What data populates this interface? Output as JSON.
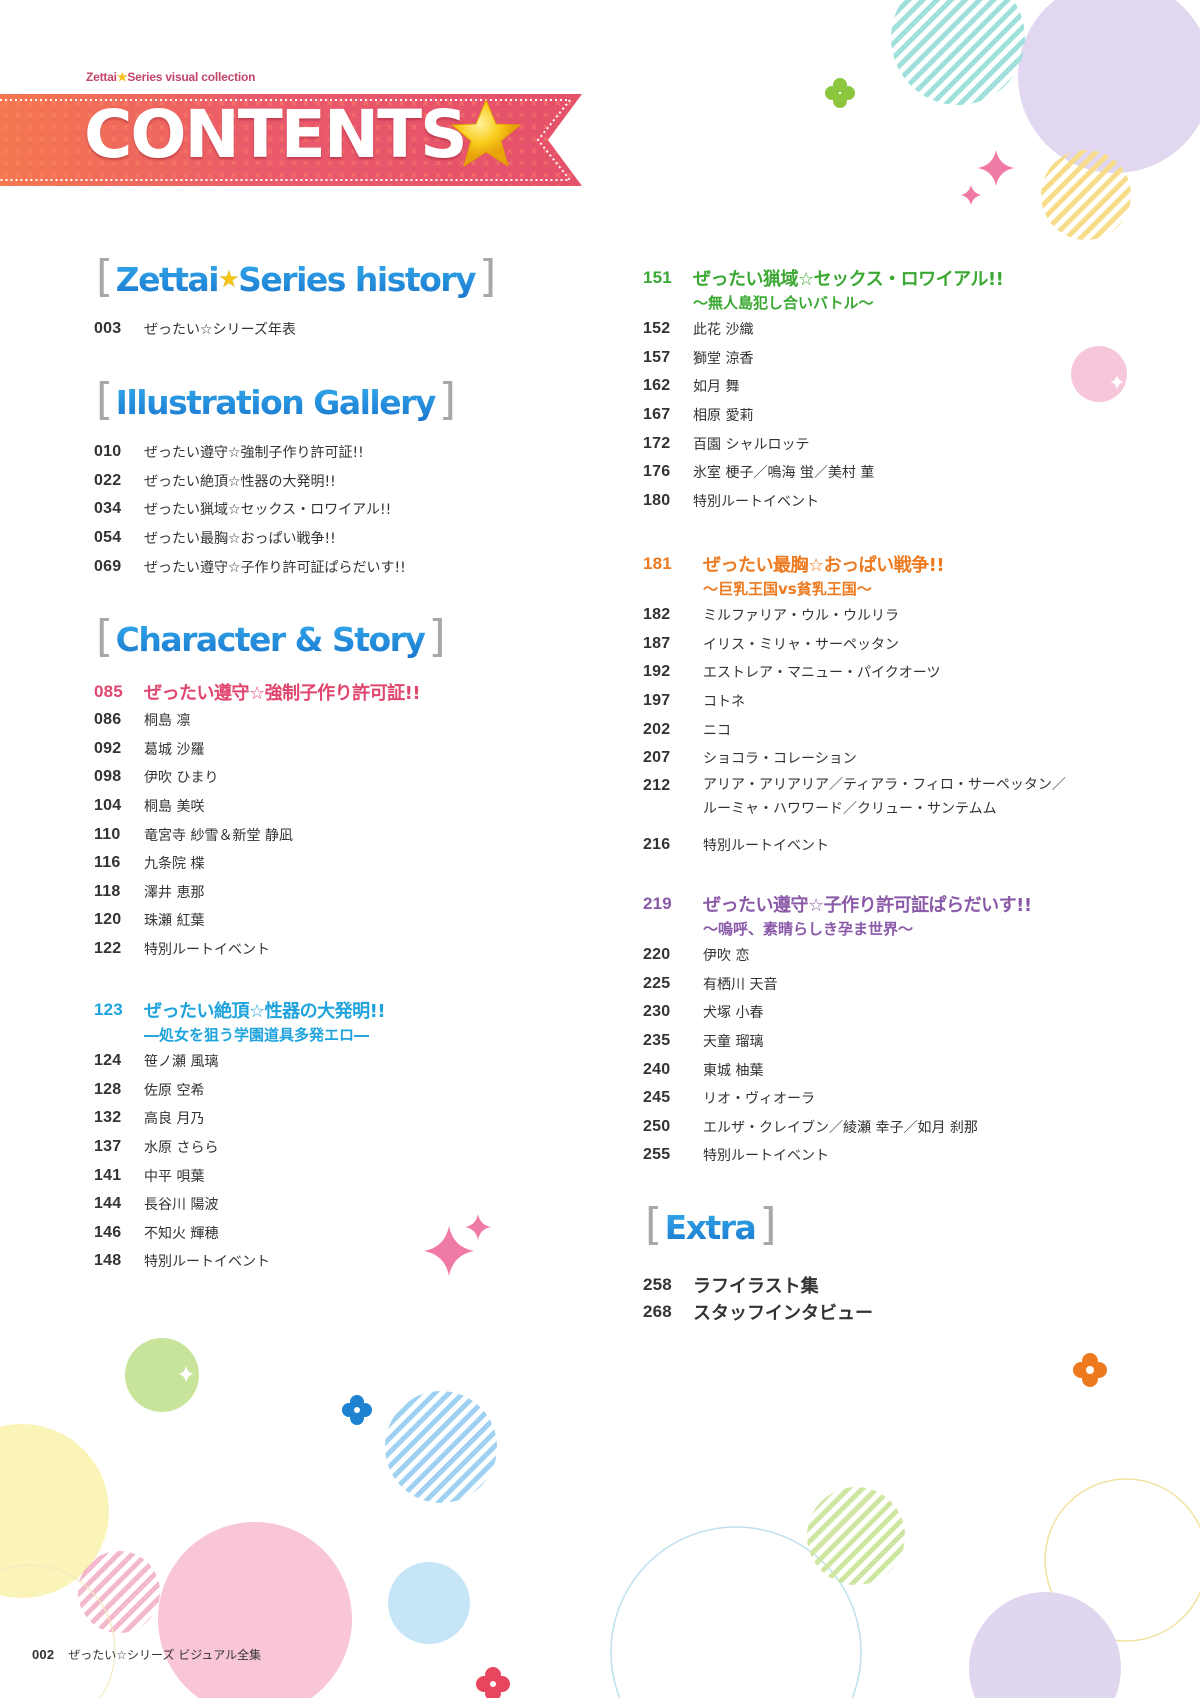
{
  "header": {
    "series_label_left": "Zettai",
    "series_label_right": "Series visual collection",
    "title": "CONTENTS"
  },
  "colors": {
    "pink": "#e0466e",
    "blue": "#1f8ad6",
    "green": "#3aa832",
    "orange": "#ee7a1f",
    "purple": "#8a5aa8",
    "banner": "#e8566e"
  },
  "sections": {
    "history": {
      "heading_left": "Zettai",
      "heading_right": "Series history",
      "items": [
        {
          "page": "003",
          "title": "ぜったい☆シリーズ年表"
        }
      ]
    },
    "gallery": {
      "heading": "Illustration Gallery",
      "items": [
        {
          "page": "010",
          "title": "ぜったい遵守☆強制子作り許可証!!"
        },
        {
          "page": "022",
          "title": "ぜったい絶頂☆性器の大発明!!"
        },
        {
          "page": "034",
          "title": "ぜったい猟域☆セックス・ロワイアル!!"
        },
        {
          "page": "054",
          "title": "ぜったい最胸☆おっぱい戦争!!"
        },
        {
          "page": "069",
          "title": "ぜったい遵守☆子作り許可証ぱらだいす!!"
        }
      ]
    },
    "character": {
      "heading": "Character & Story"
    },
    "extra": {
      "heading": "Extra",
      "items": [
        {
          "page": "258",
          "title": "ラフイラスト集"
        },
        {
          "page": "268",
          "title": "スタッフインタビュー"
        }
      ]
    }
  },
  "groups": [
    {
      "page": "085",
      "title": "ぜったい遵守☆強制子作り許可証!!",
      "subtitle": "",
      "color": "#e0466e",
      "items": [
        {
          "page": "086",
          "title": "桐島 凛"
        },
        {
          "page": "092",
          "title": "葛城 沙羅"
        },
        {
          "page": "098",
          "title": "伊吹 ひまり"
        },
        {
          "page": "104",
          "title": "桐島 美咲"
        },
        {
          "page": "110",
          "title": "竜宮寺 紗雪＆新堂 静凪"
        },
        {
          "page": "116",
          "title": "九条院 楪"
        },
        {
          "page": "118",
          "title": "澤井 恵那"
        },
        {
          "page": "120",
          "title": "珠瀬 紅葉"
        },
        {
          "page": "122",
          "title": "特別ルートイベント"
        }
      ]
    },
    {
      "page": "123",
      "title": "ぜったい絶頂☆性器の大発明!!",
      "subtitle": "―処女を狙う学園道具多発エロ―",
      "color": "#1ea3dc",
      "items": [
        {
          "page": "124",
          "title": "笹ノ瀬 風璃"
        },
        {
          "page": "128",
          "title": "佐原 空希"
        },
        {
          "page": "132",
          "title": "高良 月乃"
        },
        {
          "page": "137",
          "title": "水原 さらら"
        },
        {
          "page": "141",
          "title": "中平 唄葉"
        },
        {
          "page": "144",
          "title": "長谷川 陽波"
        },
        {
          "page": "146",
          "title": "不知火 輝穂"
        },
        {
          "page": "148",
          "title": "特別ルートイベント"
        }
      ]
    },
    {
      "page": "151",
      "title": "ぜったい猟域☆セックス・ロワイアル!!",
      "subtitle": "～無人島犯し合いバトル～",
      "color": "#3aa832",
      "items": [
        {
          "page": "152",
          "title": "此花 沙織"
        },
        {
          "page": "157",
          "title": "獅堂 涼香"
        },
        {
          "page": "162",
          "title": "如月 舞"
        },
        {
          "page": "167",
          "title": "相原 愛莉"
        },
        {
          "page": "172",
          "title": "百園 シャルロッテ"
        },
        {
          "page": "176",
          "title": "氷室 梗子／鳴海 蛍／美村 菫"
        },
        {
          "page": "180",
          "title": "特別ルートイベント"
        }
      ]
    },
    {
      "page": "181",
      "title": "ぜったい最胸☆おっぱい戦争!!",
      "subtitle": "～巨乳王国vs貧乳王国～",
      "color": "#ee7a1f",
      "items": [
        {
          "page": "182",
          "title": "ミルファリア・ウル・ウルリラ"
        },
        {
          "page": "187",
          "title": "イリス・ミリャ・サーペッタン"
        },
        {
          "page": "192",
          "title": "エストレア・マニュー・パイクオーツ"
        },
        {
          "page": "197",
          "title": "コトネ"
        },
        {
          "page": "202",
          "title": "ニコ"
        },
        {
          "page": "207",
          "title": "ショコラ・コレーション"
        },
        {
          "page": "212",
          "title": "アリア・アリアリア／ティアラ・フィロ・サーペッタン／",
          "title_line2": "ルーミャ・ハワワード／クリュー・サンテムム"
        },
        {
          "page": "216",
          "title": "特別ルートイベント"
        }
      ]
    },
    {
      "page": "219",
      "title": "ぜったい遵守☆子作り許可証ぱらだいす!!",
      "subtitle": "～嗚呼、素晴らしき孕ま世界～",
      "color": "#8a5aa8",
      "items": [
        {
          "page": "220",
          "title": "伊吹 恋"
        },
        {
          "page": "225",
          "title": "有栖川 天音"
        },
        {
          "page": "230",
          "title": "犬塚 小春"
        },
        {
          "page": "235",
          "title": "天童 瑠璃"
        },
        {
          "page": "240",
          "title": "東城 柚葉"
        },
        {
          "page": "245",
          "title": "リオ・ヴィオーラ"
        },
        {
          "page": "250",
          "title": "エルザ・クレイブン／綾瀬 幸子／如月 刹那"
        },
        {
          "page": "255",
          "title": "特別ルートイベント"
        }
      ]
    }
  ],
  "footer": {
    "page": "002",
    "title": "ぜったい☆シリーズ ビジュアル全集"
  }
}
